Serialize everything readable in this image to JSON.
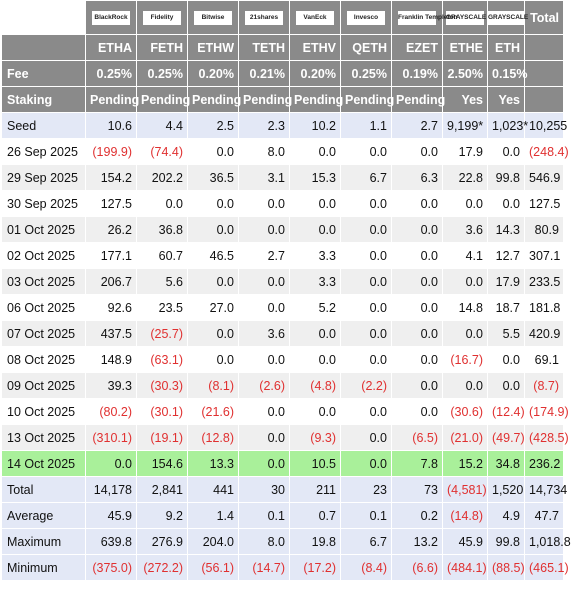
{
  "table": {
    "total_header": "Total",
    "logos": [
      {
        "name": "BlackRock",
        "icon": "blackrock-logo"
      },
      {
        "name": "Fidelity",
        "icon": "fidelity-logo"
      },
      {
        "name": "Bitwise",
        "icon": "bitwise-logo"
      },
      {
        "name": "21shares",
        "icon": "21shares-logo"
      },
      {
        "name": "VanEck",
        "icon": "vaneck-logo"
      },
      {
        "name": "Invesco",
        "icon": "invesco-logo"
      },
      {
        "name": "Franklin Templeton",
        "icon": "franklin-templeton-logo"
      },
      {
        "name": "GRAYSCALE",
        "icon": "grayscale-logo"
      },
      {
        "name": "GRAYSCALE",
        "icon": "grayscale-logo"
      }
    ],
    "header_rows": [
      {
        "label": "",
        "cells": [
          "ETHA",
          "FETH",
          "ETHW",
          "TETH",
          "ETHV",
          "QETH",
          "EZET",
          "ETHE",
          "ETH",
          ""
        ]
      },
      {
        "label": "Fee",
        "cells": [
          "0.25%",
          "0.25%",
          "0.20%",
          "0.21%",
          "0.20%",
          "0.25%",
          "0.19%",
          "2.50%",
          "0.15%",
          ""
        ]
      },
      {
        "label": "Staking",
        "cells": [
          "Pending",
          "Pending",
          "Pending",
          "Pending",
          "Pending",
          "Pending",
          "Pending",
          "Yes",
          "Yes",
          ""
        ]
      }
    ],
    "rows": [
      {
        "label": "Seed",
        "style": "b",
        "cells": [
          "10.6",
          "4.4",
          "2.5",
          "2.3",
          "10.2",
          "1.1",
          "2.7",
          "9,199*",
          "1,023*",
          "10,255"
        ]
      },
      {
        "label": "26 Sep 2025",
        "style": "w",
        "cells": [
          "(199.9)",
          "(74.4)",
          "0.0",
          "8.0",
          "0.0",
          "0.0",
          "0.0",
          "17.9",
          "0.0",
          "(248.4)"
        ]
      },
      {
        "label": "29 Sep 2025",
        "style": "g",
        "cells": [
          "154.2",
          "202.2",
          "36.5",
          "3.1",
          "15.3",
          "6.7",
          "6.3",
          "22.8",
          "99.8",
          "546.9"
        ]
      },
      {
        "label": "30 Sep 2025",
        "style": "w",
        "cells": [
          "127.5",
          "0.0",
          "0.0",
          "0.0",
          "0.0",
          "0.0",
          "0.0",
          "0.0",
          "0.0",
          "127.5"
        ]
      },
      {
        "label": "01 Oct 2025",
        "style": "g",
        "cells": [
          "26.2",
          "36.8",
          "0.0",
          "0.0",
          "0.0",
          "0.0",
          "0.0",
          "3.6",
          "14.3",
          "80.9"
        ]
      },
      {
        "label": "02 Oct 2025",
        "style": "w",
        "cells": [
          "177.1",
          "60.7",
          "46.5",
          "2.7",
          "3.3",
          "0.0",
          "0.0",
          "4.1",
          "12.7",
          "307.1"
        ]
      },
      {
        "label": "03 Oct 2025",
        "style": "g",
        "cells": [
          "206.7",
          "5.6",
          "0.0",
          "0.0",
          "3.3",
          "0.0",
          "0.0",
          "0.0",
          "17.9",
          "233.5"
        ]
      },
      {
        "label": "06 Oct 2025",
        "style": "w",
        "cells": [
          "92.6",
          "23.5",
          "27.0",
          "0.0",
          "5.2",
          "0.0",
          "0.0",
          "14.8",
          "18.7",
          "181.8"
        ]
      },
      {
        "label": "07 Oct 2025",
        "style": "g",
        "cells": [
          "437.5",
          "(25.7)",
          "0.0",
          "3.6",
          "0.0",
          "0.0",
          "0.0",
          "0.0",
          "5.5",
          "420.9"
        ]
      },
      {
        "label": "08 Oct 2025",
        "style": "w",
        "cells": [
          "148.9",
          "(63.1)",
          "0.0",
          "0.0",
          "0.0",
          "0.0",
          "0.0",
          "(16.7)",
          "0.0",
          "69.1"
        ]
      },
      {
        "label": "09 Oct 2025",
        "style": "g",
        "cells": [
          "39.3",
          "(30.3)",
          "(8.1)",
          "(2.6)",
          "(4.8)",
          "(2.2)",
          "0.0",
          "0.0",
          "0.0",
          "(8.7)"
        ]
      },
      {
        "label": "10 Oct 2025",
        "style": "w",
        "cells": [
          "(80.2)",
          "(30.1)",
          "(21.6)",
          "0.0",
          "0.0",
          "0.0",
          "0.0",
          "(30.6)",
          "(12.4)",
          "(174.9)"
        ]
      },
      {
        "label": "13 Oct 2025",
        "style": "g",
        "cells": [
          "(310.1)",
          "(19.1)",
          "(12.8)",
          "0.0",
          "(9.3)",
          "0.0",
          "(6.5)",
          "(21.0)",
          "(49.7)",
          "(428.5)"
        ]
      },
      {
        "label": "14 Oct 2025",
        "style": "hl",
        "cells": [
          "0.0",
          "154.6",
          "13.3",
          "0.0",
          "10.5",
          "0.0",
          "7.8",
          "15.2",
          "34.8",
          "236.2"
        ]
      },
      {
        "label": "Total",
        "style": "b",
        "cells": [
          "14,178",
          "2,841",
          "441",
          "30",
          "211",
          "23",
          "73",
          "(4,581)",
          "1,520",
          "14,734"
        ]
      },
      {
        "label": "Average",
        "style": "b",
        "cells": [
          "45.9",
          "9.2",
          "1.4",
          "0.1",
          "0.7",
          "0.1",
          "0.2",
          "(14.8)",
          "4.9",
          "47.7"
        ]
      },
      {
        "label": "Maximum",
        "style": "b",
        "cells": [
          "639.8",
          "276.9",
          "204.0",
          "8.0",
          "19.8",
          "6.7",
          "13.2",
          "45.9",
          "99.8",
          "1,018.8"
        ]
      },
      {
        "label": "Minimum",
        "style": "b",
        "cells": [
          "(375.0)",
          "(272.2)",
          "(56.1)",
          "(14.7)",
          "(17.2)",
          "(8.4)",
          "(6.6)",
          "(484.1)",
          "(88.5)",
          "(465.1)"
        ]
      }
    ],
    "colors": {
      "header": "#8a8a8a",
      "negative": "#e03030",
      "highlight": "#a9f09a",
      "summary": "#e3e8f6",
      "alt": "#efefef"
    }
  }
}
